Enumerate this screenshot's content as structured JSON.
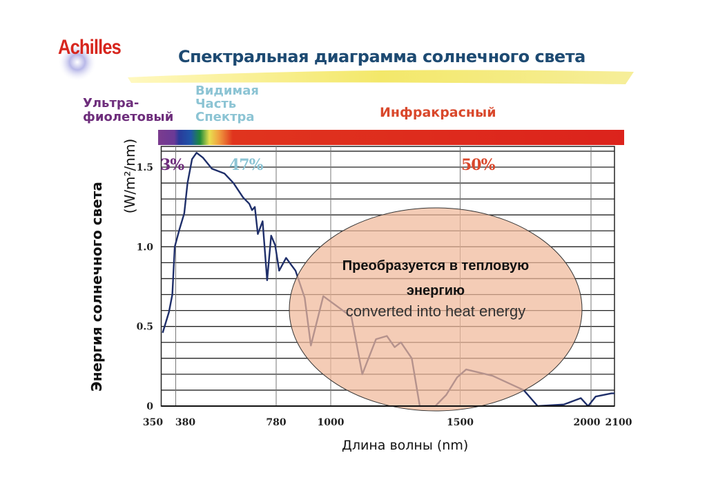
{
  "logo": "Achilles",
  "title": "Спектральная диаграмма солнечного света",
  "bands": {
    "uv": [
      "Ультра-",
      "фиолетовый"
    ],
    "visible": [
      "Видимая",
      "Часть",
      "Спектра"
    ],
    "ir": "Инфракрасный"
  },
  "colors": {
    "uv": "#6e2e7c",
    "visible": "#8cc4d4",
    "ir": "#d9482c",
    "curve": "#1f2f6a",
    "ellipse": "#f0b89a",
    "title": "#1d4a72"
  },
  "chart_data": {
    "type": "line",
    "title": "Спектральная диаграмма солнечного света",
    "xlabel": "Длина волны (nm)",
    "ylabel": "Энергия солнечного света",
    "yunit": "(W/m²/nm)",
    "xlim": [
      350,
      2100
    ],
    "ylim": [
      0,
      1.63
    ],
    "grid": true,
    "x_ticks": [
      "350",
      "380",
      "780",
      "1000",
      "1500",
      "2000",
      "2100"
    ],
    "y_ticks": [
      "0",
      "0.5",
      "1.0",
      "1.5"
    ],
    "percent_labels": [
      {
        "text": "3%",
        "band": "uv"
      },
      {
        "text": "47%",
        "band": "visible"
      },
      {
        "text": "50%",
        "band": "ir"
      }
    ],
    "annotation": {
      "ru_line1": "Преобразуется в тепловую",
      "ru_line2": "энергию",
      "en": "converted into heat energy"
    },
    "series": [
      {
        "x": [
          353,
          366,
          373,
          378,
          395,
          414,
          427,
          445,
          463,
          488,
          524,
          574,
          610,
          648,
          673,
          684,
          695,
          707,
          726,
          744,
          760,
          776,
          792,
          820,
          858,
          895,
          920,
          970,
          1030,
          1080,
          1122,
          1175,
          1217,
          1247,
          1271,
          1313,
          1344,
          1404,
          1446,
          1488,
          1523,
          1624,
          1743,
          1796,
          1896,
          1961,
          1989,
          2020,
          2087,
          2100
        ],
        "y": [
          0.46,
          0.59,
          0.7,
          1.0,
          1.11,
          1.21,
          1.4,
          1.55,
          1.59,
          1.56,
          1.49,
          1.46,
          1.4,
          1.31,
          1.27,
          1.23,
          1.25,
          1.08,
          1.16,
          0.79,
          1.07,
          1.01,
          0.85,
          0.93,
          0.85,
          0.68,
          0.38,
          0.69,
          0.62,
          0.56,
          0.2,
          0.42,
          0.44,
          0.37,
          0.4,
          0.3,
          0.0,
          0.0,
          0.07,
          0.18,
          0.23,
          0.19,
          0.1,
          0.0,
          0.01,
          0.05,
          0.0,
          0.06,
          0.08,
          0.08
        ]
      }
    ]
  }
}
